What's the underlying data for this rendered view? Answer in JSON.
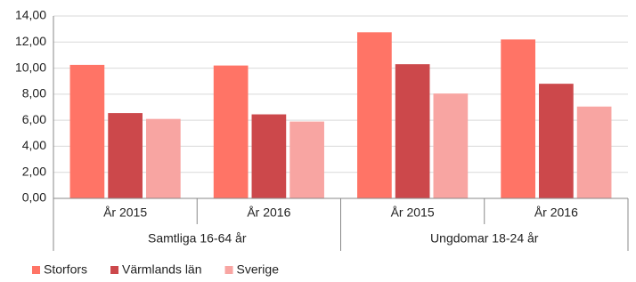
{
  "chart_data": {
    "type": "bar",
    "categories": [
      "År 2015",
      "År 2016",
      "År 2015",
      "År 2016"
    ],
    "category_groups": [
      "Samtliga 16-64 år",
      "Ungdomar 18-24 år"
    ],
    "series": [
      {
        "name": "Storfors",
        "color": "#ff7466",
        "values": [
          10.25,
          10.2,
          12.75,
          12.2
        ]
      },
      {
        "name": "Värmlands län",
        "color": "#cc484b",
        "values": [
          6.55,
          6.45,
          10.3,
          8.8
        ]
      },
      {
        "name": "Sverige",
        "color": "#f8a5a2",
        "values": [
          6.1,
          5.9,
          8.05,
          7.05
        ]
      }
    ],
    "ylim": [
      0,
      14
    ],
    "yticks": [
      {
        "value": 0,
        "label": "0,00"
      },
      {
        "value": 2,
        "label": "2,00"
      },
      {
        "value": 4,
        "label": "4,00"
      },
      {
        "value": 6,
        "label": "6,00"
      },
      {
        "value": 8,
        "label": "8,00"
      },
      {
        "value": 10,
        "label": "10,00"
      },
      {
        "value": 12,
        "label": "12,00"
      },
      {
        "value": 14,
        "label": "14,00"
      }
    ],
    "grid": true,
    "legend": "bottom-left"
  }
}
